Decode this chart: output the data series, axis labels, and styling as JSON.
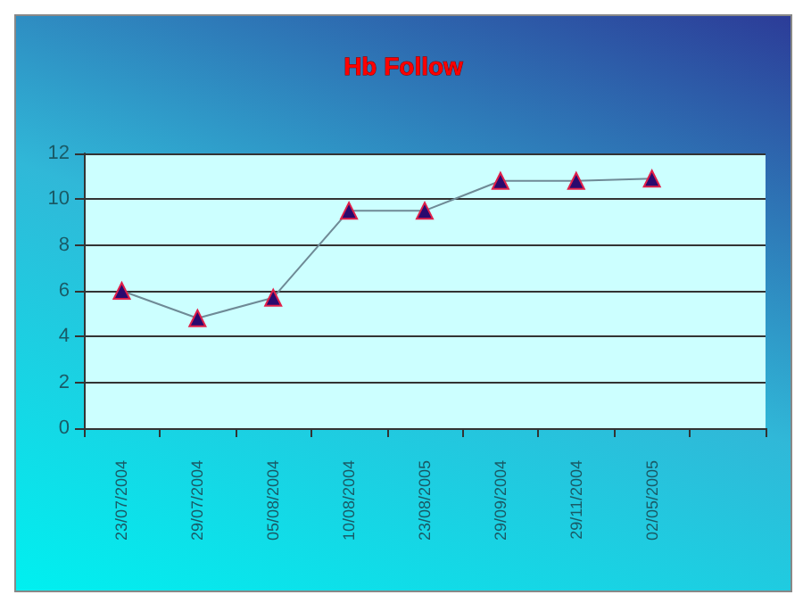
{
  "chart_data": {
    "type": "line",
    "title": "Hb Follow",
    "categories": [
      "23/07/2004",
      "29/07/2004",
      "05/08/2004",
      "10/08/2004",
      "23/08/2005",
      "29/09/2004",
      "29/11/2004",
      "02/05/2005",
      null
    ],
    "series": [
      {
        "color": "#2a0a6e",
        "values": [
          6,
          4.8,
          5.7,
          9.5,
          9.5,
          10.8,
          10.8,
          10.9,
          null
        ]
      }
    ],
    "ylim": [
      0,
      12
    ],
    "yticks": [
      0,
      2,
      4,
      6,
      8,
      10,
      12
    ],
    "grid": "y",
    "marker": "triangle",
    "line_style": "solid"
  }
}
